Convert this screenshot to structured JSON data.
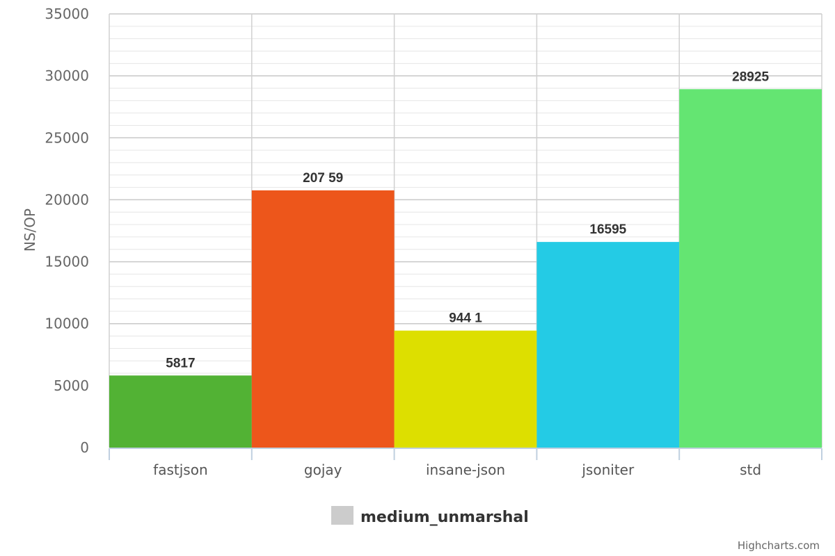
{
  "chart_data": {
    "type": "bar",
    "categories": [
      "fastjson",
      "gojay",
      "insane-json",
      "jsoniter",
      "std"
    ],
    "values": [
      5817,
      20759,
      9441,
      16595,
      28925
    ],
    "data_labels": [
      "5817",
      "207 59",
      "944 1",
      "16595",
      "28925"
    ],
    "colors": [
      "#52b234",
      "#ed561b",
      "#dddf00",
      "#24cbe5",
      "#64e572"
    ],
    "ylabel": "NS/OP",
    "ylim": [
      0,
      35000
    ],
    "yticks": [
      0,
      5000,
      10000,
      15000,
      20000,
      25000,
      30000,
      35000
    ],
    "grid": true,
    "legend": {
      "position": "bottom-center",
      "entries": [
        {
          "name": "medium_unmarshal",
          "color": "#cccccc"
        }
      ]
    }
  },
  "credits": "Highcharts.com"
}
